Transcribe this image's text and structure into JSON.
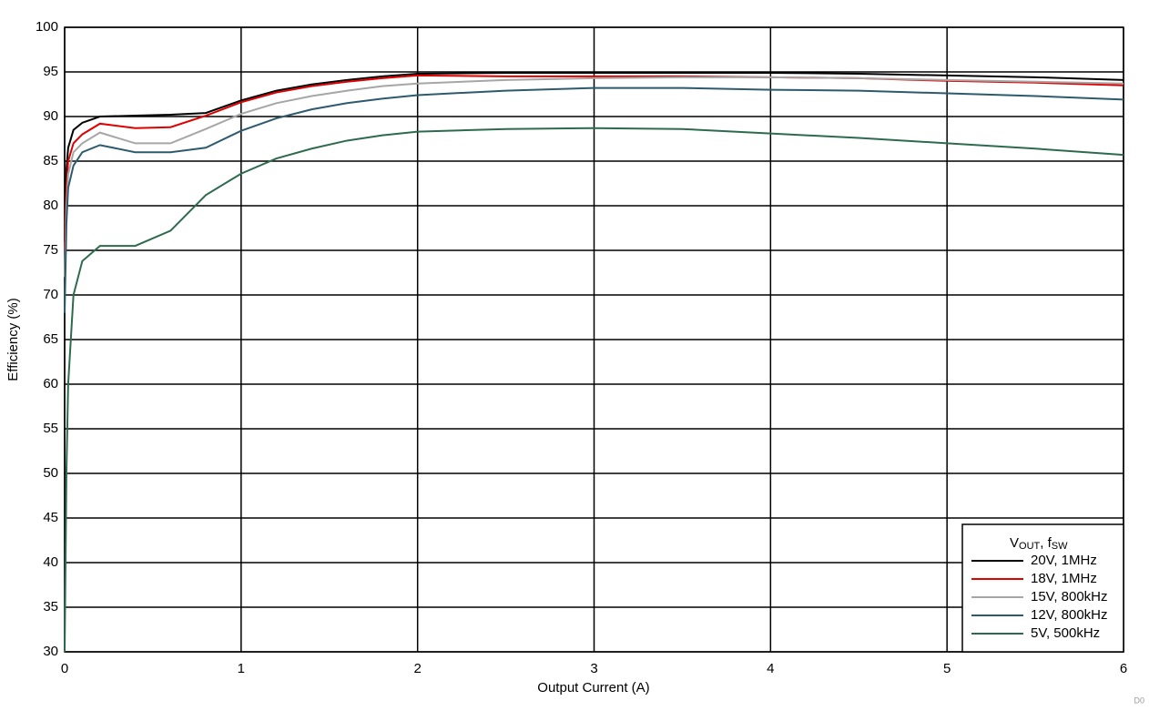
{
  "chart_data": {
    "type": "line",
    "x_label": "Output Current (A)",
    "y_label": "Efficiency (%)",
    "annotation": "D0",
    "legend_title": [
      "V",
      "OUT",
      ", f",
      "SW"
    ],
    "legend": "lower right",
    "grid": true,
    "x": [
      0,
      0.01,
      0.02,
      0.05,
      0.1,
      0.2,
      0.4,
      0.6,
      0.8,
      1,
      1.2,
      1.4,
      1.6,
      1.8,
      2,
      2.5,
      3,
      3.5,
      4,
      4.5,
      5,
      5.5,
      6
    ],
    "series": [
      {
        "name": "20V, 1MHz",
        "color": "#000000",
        "values": [
          76,
          84,
          86.5,
          88.5,
          89.3,
          90,
          90.1,
          90.2,
          90.4,
          91.8,
          92.9,
          93.6,
          94.1,
          94.5,
          94.8,
          94.9,
          94.9,
          94.9,
          94.9,
          94.8,
          94.6,
          94.4,
          94.1
        ]
      },
      {
        "name": "18V, 1MHz",
        "color": "#e00000",
        "values": [
          75,
          82,
          85,
          87,
          88,
          89.2,
          88.7,
          88.8,
          90.1,
          91.6,
          92.7,
          93.4,
          93.9,
          94.3,
          94.6,
          94.5,
          94.5,
          94.5,
          94.4,
          94.3,
          94,
          93.8,
          93.5
        ]
      },
      {
        "name": "15V, 800kHz",
        "color": "#a6a6a6",
        "values": [
          72,
          80,
          83.5,
          86,
          87,
          88.2,
          87,
          87,
          88.6,
          90.3,
          91.5,
          92.3,
          92.9,
          93.4,
          93.7,
          94.1,
          94.3,
          94.4,
          94.4,
          94.3,
          94.1,
          93.9,
          93.7
        ]
      },
      {
        "name": "12V, 800kHz",
        "color": "#2e5a6e",
        "values": [
          68,
          78,
          82,
          84.5,
          86,
          86.8,
          86,
          86,
          86.5,
          88.4,
          89.8,
          90.8,
          91.5,
          92,
          92.4,
          92.9,
          93.2,
          93.2,
          93,
          92.9,
          92.6,
          92.3,
          91.9
        ]
      },
      {
        "name": "5V, 500kHz",
        "color": "#2e6b4e",
        "values": [
          30,
          50,
          60,
          70,
          73.8,
          75.5,
          75.5,
          77.2,
          81.2,
          83.6,
          85.3,
          86.4,
          87.3,
          87.9,
          88.3,
          88.6,
          88.7,
          88.6,
          88.1,
          87.6,
          87,
          86.4,
          85.7
        ]
      }
    ],
    "xlim": [
      0,
      6
    ],
    "xticks": [
      0,
      1,
      2,
      3,
      4,
      5,
      6
    ],
    "ylim": [
      30,
      100
    ],
    "yticks": [
      30,
      35,
      40,
      45,
      50,
      55,
      60,
      65,
      70,
      75,
      80,
      85,
      90,
      95,
      100
    ]
  }
}
